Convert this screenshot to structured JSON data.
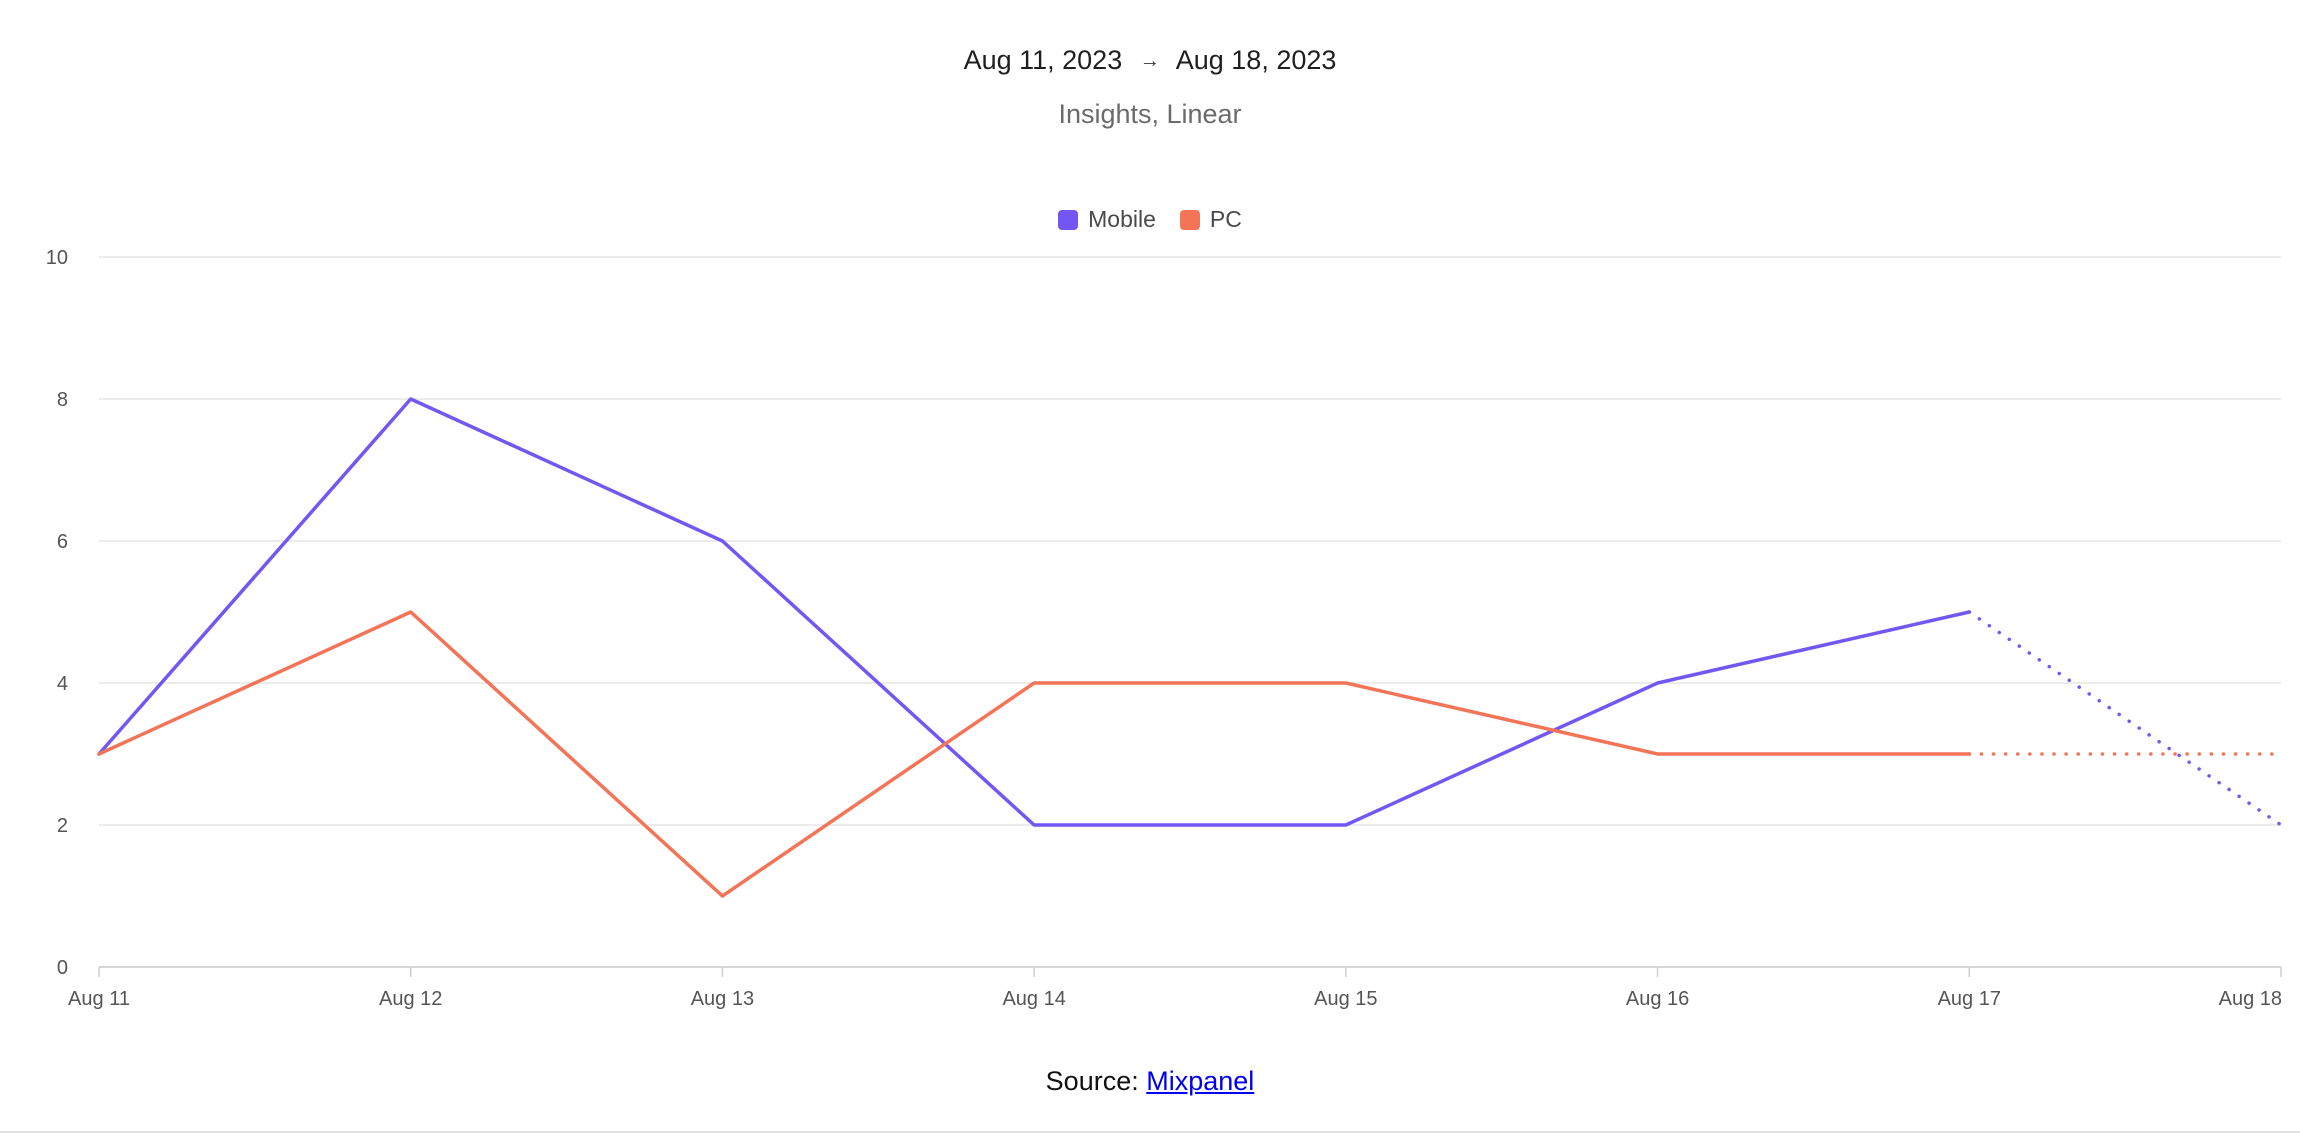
{
  "header": {
    "start_date": "Aug 11, 2023",
    "arrow": "→",
    "end_date": "Aug 18, 2023",
    "subtitle": "Insights, Linear"
  },
  "footer": {
    "source_label": "Source:",
    "source_link": "Mixpanel"
  },
  "chart_data": {
    "type": "line",
    "title": "Aug 11, 2023 → Aug 18, 2023",
    "subtitle": "Insights, Linear",
    "xlabel": "",
    "ylabel": "",
    "categories": [
      "Aug 11",
      "Aug 12",
      "Aug 13",
      "Aug 14",
      "Aug 15",
      "Aug 16",
      "Aug 17",
      "Aug 18"
    ],
    "ylim": [
      0,
      10
    ],
    "yticks": [
      0,
      2,
      4,
      6,
      8,
      10
    ],
    "grid": true,
    "legend_position": "top-center",
    "dashed_from_index": 6,
    "series": [
      {
        "name": "Mobile",
        "color": "#7457f2",
        "values": [
          3,
          8,
          6,
          2,
          2,
          4,
          5,
          2
        ]
      },
      {
        "name": "PC",
        "color": "#f47458",
        "values": [
          3,
          5,
          1,
          4,
          4,
          3,
          3,
          3
        ]
      }
    ]
  }
}
